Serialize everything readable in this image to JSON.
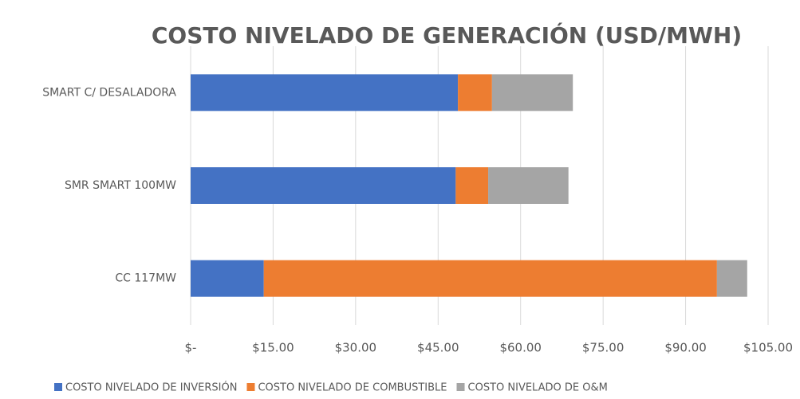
{
  "chart_data": {
    "type": "stacked_bar_horizontal",
    "title": "COSTO NIVELADO DE GENERACIÓN (USD/MWH)",
    "categories": [
      "SMART C/ DESALADORA",
      "SMR SMART 100MW",
      "CC 117MW"
    ],
    "series": [
      {
        "name": "COSTO NIVELADO DE INVERSIÓN",
        "color": "#4472c4",
        "values": [
          48.6,
          48.2,
          13.3
        ]
      },
      {
        "name": "COSTO NIVELADO DE COMBUSTIBLE",
        "color": "#ed7d31",
        "values": [
          6.2,
          5.9,
          82.4
        ]
      },
      {
        "name": "COSTO NIVELADO DE O&M",
        "color": "#a5a5a5",
        "values": [
          14.7,
          14.6,
          5.5
        ]
      }
    ],
    "xlim": [
      0,
      105
    ],
    "xticks": [
      {
        "value": 0,
        "label": "$-"
      },
      {
        "value": 15,
        "label": "$15.00"
      },
      {
        "value": 30,
        "label": "$30.00"
      },
      {
        "value": 45,
        "label": "$45.00"
      },
      {
        "value": 60,
        "label": "$60.00"
      },
      {
        "value": 75,
        "label": "$75.00"
      },
      {
        "value": 90,
        "label": "$90.00"
      },
      {
        "value": 105,
        "label": "$105.00"
      }
    ],
    "grid": true,
    "legend": "bottom"
  }
}
